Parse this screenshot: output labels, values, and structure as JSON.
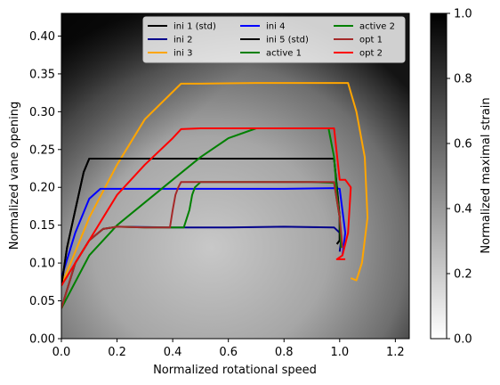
{
  "chart_data": {
    "type": "line",
    "xlabel": "Normalized rotational speed",
    "ylabel": "Normalized vane opening",
    "xlim": [
      0.0,
      1.25
    ],
    "ylim": [
      0.0,
      0.43
    ],
    "xticks": [
      "0.0",
      "0.2",
      "0.4",
      "0.6",
      "0.8",
      "1.0",
      "1.2"
    ],
    "xtick_values": [
      0.0,
      0.2,
      0.4,
      0.6,
      0.8,
      1.0,
      1.2
    ],
    "yticks": [
      "0.00",
      "0.05",
      "0.10",
      "0.15",
      "0.20",
      "0.25",
      "0.30",
      "0.35",
      "0.40"
    ],
    "ytick_values": [
      0.0,
      0.05,
      0.1,
      0.15,
      0.2,
      0.25,
      0.3,
      0.35,
      0.4
    ],
    "grid": false,
    "legend_placement": "top-right",
    "background": "grayscale heatmap of normalized maximal strain",
    "colorbar": {
      "label": "Normalized maximal strain",
      "range": [
        0.0,
        1.0
      ],
      "ticks": [
        "0.0",
        "0.2",
        "0.4",
        "0.6",
        "0.8",
        "1.0"
      ],
      "tick_values": [
        0.0,
        0.2,
        0.4,
        0.6,
        0.8,
        1.0
      ],
      "colormap": "gray_r"
    },
    "series": [
      {
        "name": "ini 1 (std)",
        "color": "#000000",
        "x": [
          0.0,
          0.02,
          0.05,
          0.08,
          0.1,
          0.15,
          0.4,
          0.8,
          0.98,
          0.99,
          1.0,
          1.0,
          0.99
        ],
        "y": [
          0.07,
          0.12,
          0.17,
          0.22,
          0.238,
          0.238,
          0.238,
          0.238,
          0.238,
          0.2,
          0.16,
          0.13,
          0.125
        ]
      },
      {
        "name": "ini 2",
        "color": "#00008b",
        "x": [
          0.0,
          0.05,
          0.1,
          0.15,
          0.2,
          0.4,
          0.6,
          0.8,
          0.98,
          1.0,
          1.005,
          1.0
        ],
        "y": [
          0.04,
          0.1,
          0.13,
          0.145,
          0.148,
          0.147,
          0.147,
          0.148,
          0.147,
          0.14,
          0.13,
          0.115
        ]
      },
      {
        "name": "ini 3",
        "color": "#ffa500",
        "x": [
          0.0,
          0.1,
          0.2,
          0.3,
          0.43,
          0.5,
          0.7,
          0.9,
          1.03,
          1.06,
          1.09,
          1.1,
          1.08,
          1.06,
          1.04
        ],
        "y": [
          0.07,
          0.16,
          0.23,
          0.29,
          0.337,
          0.337,
          0.338,
          0.338,
          0.338,
          0.3,
          0.24,
          0.16,
          0.1,
          0.077,
          0.08
        ]
      },
      {
        "name": "ini 4",
        "color": "#0000ff",
        "x": [
          0.0,
          0.05,
          0.1,
          0.14,
          0.3,
          0.6,
          0.8,
          0.98,
          1.0,
          1.02,
          1.01
        ],
        "y": [
          0.08,
          0.14,
          0.185,
          0.198,
          0.198,
          0.198,
          0.198,
          0.199,
          0.198,
          0.14,
          0.11
        ]
      },
      {
        "name": "ini 5 (std)",
        "color": "#000000",
        "x": [
          0.0,
          0.02,
          0.05,
          0.08,
          0.1,
          0.15,
          0.4,
          0.8,
          0.98,
          0.99,
          1.0,
          1.0,
          0.99
        ],
        "y": [
          0.07,
          0.12,
          0.17,
          0.22,
          0.238,
          0.238,
          0.238,
          0.238,
          0.238,
          0.2,
          0.16,
          0.13,
          0.125
        ]
      },
      {
        "name": "active 1",
        "color": "#008000",
        "x": [
          0.0,
          0.05,
          0.1,
          0.15,
          0.2,
          0.3,
          0.44,
          0.46,
          0.47,
          0.48,
          0.5,
          0.7,
          0.9,
          0.98,
          1.0,
          1.005
        ],
        "y": [
          0.04,
          0.1,
          0.13,
          0.145,
          0.148,
          0.147,
          0.147,
          0.17,
          0.19,
          0.2,
          0.207,
          0.207,
          0.207,
          0.206,
          0.16,
          0.12
        ]
      },
      {
        "name": "active 2",
        "color": "#008000",
        "x": [
          0.0,
          0.1,
          0.2,
          0.3,
          0.4,
          0.5,
          0.6,
          0.7,
          0.8,
          0.9,
          0.96,
          0.98,
          0.99,
          1.0
        ],
        "y": [
          0.04,
          0.11,
          0.15,
          0.18,
          0.21,
          0.24,
          0.265,
          0.278,
          0.278,
          0.278,
          0.278,
          0.24,
          0.19,
          0.16
        ]
      },
      {
        "name": "opt 1",
        "color": "#a52a2a",
        "x": [
          0.0,
          0.05,
          0.1,
          0.15,
          0.2,
          0.3,
          0.39,
          0.4,
          0.41,
          0.42,
          0.43,
          0.6,
          0.8,
          0.98,
          1.0,
          1.01
        ],
        "y": [
          0.04,
          0.1,
          0.13,
          0.145,
          0.148,
          0.147,
          0.147,
          0.17,
          0.19,
          0.2,
          0.207,
          0.207,
          0.207,
          0.207,
          0.16,
          0.12
        ]
      },
      {
        "name": "opt 2",
        "color": "#ff0000",
        "x": [
          0.0,
          0.05,
          0.1,
          0.15,
          0.2,
          0.3,
          0.4,
          0.43,
          0.5,
          0.7,
          0.9,
          0.98,
          1.0,
          1.02,
          1.04,
          1.03,
          1.01,
          0.99,
          1.02
        ],
        "y": [
          0.07,
          0.1,
          0.13,
          0.16,
          0.19,
          0.23,
          0.265,
          0.277,
          0.278,
          0.278,
          0.278,
          0.278,
          0.21,
          0.21,
          0.2,
          0.14,
          0.11,
          0.105,
          0.105
        ]
      }
    ]
  }
}
